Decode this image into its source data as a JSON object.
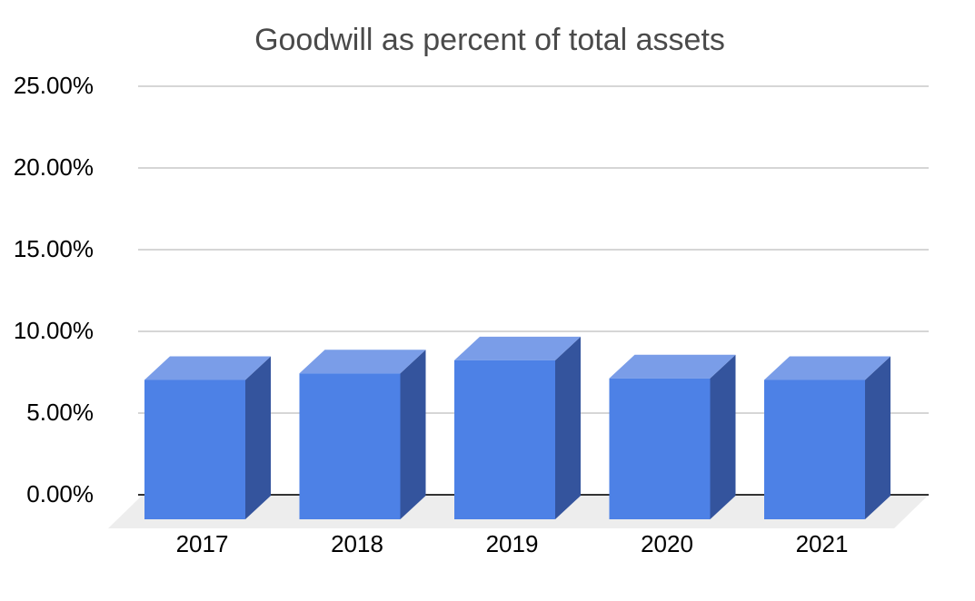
{
  "chart_data": {
    "type": "bar",
    "style": "3d-column",
    "title": "Goodwill as percent of total assets",
    "categories": [
      "2017",
      "2018",
      "2019",
      "2020",
      "2021"
    ],
    "values": [
      8.5,
      8.9,
      9.7,
      8.6,
      8.5
    ],
    "value_unit": "%",
    "xlabel": "",
    "ylabel": "",
    "ylim": [
      0,
      25
    ],
    "ytick_step": 5,
    "yticks": [
      {
        "value": 25,
        "label": "25.00%"
      },
      {
        "value": 20,
        "label": "20.00%"
      },
      {
        "value": 15,
        "label": "15.00%"
      },
      {
        "value": 10,
        "label": "10.00%"
      },
      {
        "value": 5,
        "label": "5.00%"
      },
      {
        "value": 0,
        "label": "0.00%"
      }
    ],
    "grid": true,
    "legend_position": "none",
    "colors": {
      "bar_front": "#4d81e6",
      "bar_top": "#7a9de8",
      "bar_side": "#34549d",
      "floor": "#ededed",
      "gridline": "#d6d6d6",
      "axis_line": "#333333",
      "title_color": "#4a4a4a",
      "tick_label_color": "#000000",
      "background": "#ffffff"
    }
  }
}
